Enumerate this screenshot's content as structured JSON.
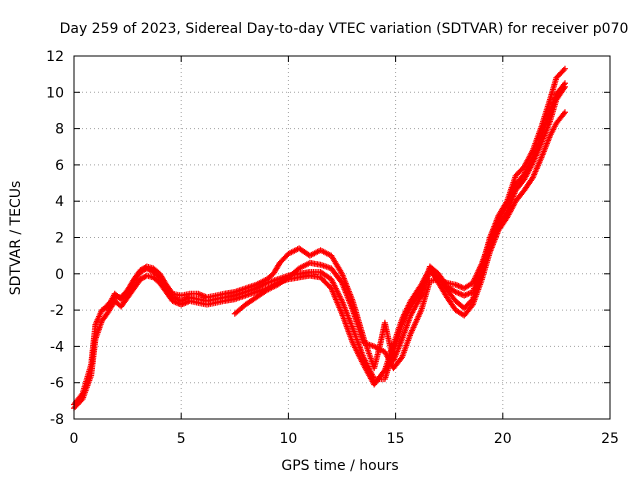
{
  "chart_data": {
    "type": "scatter",
    "title": "Day 259 of 2023, Sidereal Day-to-day VTEC variation (SDTVAR) for receiver p070",
    "xlabel": "GPS time / hours",
    "ylabel": "SDTVAR / TECUs",
    "xlim": [
      0,
      25
    ],
    "ylim": [
      -8,
      12
    ],
    "x_ticks": [
      "0",
      "5",
      "10",
      "15",
      "20",
      "25"
    ],
    "y_ticks": [
      "-8",
      "-6",
      "-4",
      "-2",
      "0",
      "2",
      "4",
      "6",
      "8",
      "10",
      "12"
    ],
    "grid": true,
    "marker": "plus",
    "color": "#ff0000",
    "series": [
      {
        "values": [
          [
            0,
            -7.2
          ],
          [
            0.4,
            -6.6
          ],
          [
            0.8,
            -5.0
          ],
          [
            1.0,
            -2.8
          ],
          [
            1.3,
            -2.0
          ],
          [
            1.6,
            -1.8
          ],
          [
            1.9,
            -1.1
          ],
          [
            2.2,
            -1.4
          ],
          [
            2.5,
            -1.0
          ],
          [
            2.8,
            -0.4
          ],
          [
            3.1,
            0.1
          ],
          [
            3.4,
            0.3
          ],
          [
            3.7,
            0.1
          ],
          [
            4.0,
            -0.2
          ],
          [
            4.3,
            -0.8
          ],
          [
            4.6,
            -1.3
          ],
          [
            5.0,
            -1.5
          ],
          [
            5.4,
            -1.3
          ],
          [
            5.8,
            -1.4
          ],
          [
            6.2,
            -1.5
          ],
          [
            6.6,
            -1.4
          ],
          [
            7.0,
            -1.3
          ],
          [
            7.5,
            -1.2
          ],
          [
            8.0,
            -1.0
          ],
          [
            8.5,
            -0.8
          ],
          [
            9.0,
            -0.5
          ],
          [
            9.5,
            -0.3
          ],
          [
            10.0,
            -0.1
          ],
          [
            10.5,
            0.0
          ],
          [
            11.0,
            0.1
          ],
          [
            11.5,
            0.1
          ],
          [
            12.0,
            -0.3
          ],
          [
            12.5,
            -1.5
          ],
          [
            13.0,
            -3.0
          ],
          [
            13.5,
            -4.6
          ],
          [
            14.0,
            -5.8
          ],
          [
            14.5,
            -5.8
          ],
          [
            14.9,
            -4.3
          ],
          [
            15.3,
            -2.8
          ],
          [
            15.7,
            -1.8
          ],
          [
            16.2,
            -0.9
          ],
          [
            16.6,
            0.1
          ],
          [
            17.0,
            -0.2
          ],
          [
            17.4,
            -0.9
          ],
          [
            17.8,
            -1.5
          ],
          [
            18.2,
            -1.9
          ],
          [
            18.6,
            -1.4
          ],
          [
            19.0,
            -0.1
          ],
          [
            19.4,
            1.5
          ],
          [
            19.8,
            2.7
          ],
          [
            20.2,
            3.4
          ],
          [
            20.6,
            4.6
          ],
          [
            21.0,
            5.2
          ],
          [
            21.4,
            6.1
          ],
          [
            21.8,
            7.2
          ],
          [
            22.2,
            8.4
          ],
          [
            22.5,
            9.6
          ],
          [
            22.9,
            10.3
          ]
        ]
      },
      {
        "values": [
          [
            0,
            -7.4
          ],
          [
            0.4,
            -6.9
          ],
          [
            0.8,
            -5.6
          ],
          [
            1.0,
            -3.6
          ],
          [
            1.3,
            -2.6
          ],
          [
            1.6,
            -2.1
          ],
          [
            1.9,
            -1.5
          ],
          [
            2.2,
            -1.8
          ],
          [
            2.5,
            -1.3
          ],
          [
            2.8,
            -0.8
          ],
          [
            3.1,
            -0.3
          ],
          [
            3.4,
            -0.1
          ],
          [
            3.7,
            -0.2
          ],
          [
            4.0,
            -0.5
          ],
          [
            4.3,
            -1.0
          ],
          [
            4.6,
            -1.5
          ],
          [
            5.0,
            -1.7
          ],
          [
            5.4,
            -1.5
          ],
          [
            5.8,
            -1.6
          ],
          [
            6.2,
            -1.7
          ],
          [
            6.6,
            -1.6
          ],
          [
            7.0,
            -1.5
          ],
          [
            7.5,
            -1.4
          ],
          [
            8.0,
            -1.2
          ],
          [
            8.5,
            -1.0
          ],
          [
            9.0,
            -0.8
          ],
          [
            9.5,
            -0.5
          ],
          [
            10.0,
            -0.3
          ],
          [
            10.5,
            -0.2
          ],
          [
            11.0,
            -0.1
          ],
          [
            11.5,
            -0.2
          ],
          [
            12.0,
            -0.8
          ],
          [
            12.5,
            -2.2
          ],
          [
            13.0,
            -3.8
          ],
          [
            13.5,
            -5.0
          ],
          [
            14.0,
            -6.1
          ],
          [
            14.5,
            -5.3
          ],
          [
            14.9,
            -3.9
          ],
          [
            15.3,
            -2.5
          ],
          [
            15.7,
            -1.5
          ],
          [
            16.2,
            -0.6
          ],
          [
            16.6,
            0.3
          ],
          [
            17.0,
            -0.5
          ],
          [
            17.4,
            -1.3
          ],
          [
            17.8,
            -2.0
          ],
          [
            18.2,
            -2.3
          ],
          [
            18.6,
            -1.7
          ],
          [
            19.0,
            -0.4
          ],
          [
            19.4,
            1.2
          ],
          [
            19.8,
            2.4
          ],
          [
            20.2,
            3.1
          ],
          [
            20.6,
            4.0
          ],
          [
            21.0,
            4.6
          ],
          [
            21.4,
            5.3
          ],
          [
            21.8,
            6.4
          ],
          [
            22.2,
            7.6
          ],
          [
            22.5,
            8.3
          ],
          [
            22.9,
            8.9
          ]
        ]
      },
      {
        "values": [
          [
            1.5,
            -1.8
          ],
          [
            1.9,
            -1.3
          ],
          [
            2.2,
            -1.3
          ],
          [
            2.5,
            -0.9
          ],
          [
            2.8,
            -0.3
          ],
          [
            3.1,
            0.2
          ],
          [
            3.4,
            0.4
          ],
          [
            3.7,
            0.3
          ],
          [
            4.0,
            0.0
          ],
          [
            4.3,
            -0.6
          ],
          [
            4.6,
            -1.1
          ],
          [
            5.0,
            -1.2
          ],
          [
            5.4,
            -1.1
          ],
          [
            5.8,
            -1.1
          ],
          [
            6.2,
            -1.3
          ],
          [
            6.6,
            -1.2
          ],
          [
            7.0,
            -1.1
          ],
          [
            7.5,
            -1.0
          ],
          [
            8.0,
            -0.8
          ],
          [
            8.5,
            -0.6
          ],
          [
            9.0,
            -0.3
          ],
          [
            9.3,
            0.0
          ],
          [
            9.6,
            0.6
          ],
          [
            10.0,
            1.1
          ],
          [
            10.5,
            1.4
          ],
          [
            11.0,
            1.0
          ],
          [
            11.5,
            1.3
          ],
          [
            12.0,
            1.0
          ],
          [
            12.5,
            0.0
          ],
          [
            13.0,
            -1.5
          ],
          [
            13.5,
            -3.5
          ],
          [
            14.0,
            -5.2
          ],
          [
            14.3,
            -3.8
          ],
          [
            14.5,
            -2.7
          ],
          [
            14.9,
            -4.8
          ],
          [
            15.3,
            -3.6
          ],
          [
            15.7,
            -2.3
          ],
          [
            16.2,
            -1.2
          ],
          [
            16.6,
            0.4
          ],
          [
            17.0,
            0.0
          ],
          [
            17.4,
            -0.7
          ],
          [
            17.8,
            -1.0
          ],
          [
            18.2,
            -1.2
          ],
          [
            18.6,
            -1.0
          ],
          [
            19.0,
            0.3
          ],
          [
            19.4,
            2.0
          ],
          [
            19.8,
            3.2
          ],
          [
            20.2,
            4.0
          ],
          [
            20.6,
            5.4
          ],
          [
            21.0,
            5.9
          ],
          [
            21.4,
            6.8
          ],
          [
            21.8,
            8.1
          ],
          [
            22.2,
            9.6
          ],
          [
            22.5,
            10.8
          ],
          [
            22.9,
            11.3
          ]
        ]
      },
      {
        "values": [
          [
            7.5,
            -2.2
          ],
          [
            8.0,
            -1.7
          ],
          [
            8.5,
            -1.3
          ],
          [
            9.0,
            -0.9
          ],
          [
            9.5,
            -0.6
          ],
          [
            10.0,
            -0.2
          ],
          [
            10.5,
            0.3
          ],
          [
            11.0,
            0.6
          ],
          [
            11.5,
            0.5
          ],
          [
            12.0,
            0.3
          ],
          [
            12.5,
            -0.5
          ],
          [
            13.0,
            -2.0
          ],
          [
            13.5,
            -3.8
          ],
          [
            14.0,
            -4.0
          ],
          [
            14.5,
            -4.3
          ],
          [
            14.9,
            -5.2
          ],
          [
            15.3,
            -4.6
          ],
          [
            15.7,
            -3.3
          ],
          [
            16.2,
            -2.0
          ],
          [
            16.6,
            -0.4
          ],
          [
            17.0,
            -0.3
          ],
          [
            17.4,
            -0.5
          ],
          [
            17.8,
            -0.6
          ],
          [
            18.2,
            -0.8
          ],
          [
            18.6,
            -0.5
          ],
          [
            19.0,
            0.5
          ],
          [
            19.4,
            1.8
          ],
          [
            19.8,
            3.0
          ],
          [
            20.2,
            3.8
          ],
          [
            20.6,
            4.9
          ],
          [
            21.0,
            5.5
          ],
          [
            21.4,
            6.4
          ],
          [
            21.8,
            7.6
          ],
          [
            22.2,
            8.9
          ],
          [
            22.5,
            9.9
          ],
          [
            22.9,
            10.5
          ]
        ]
      }
    ]
  }
}
